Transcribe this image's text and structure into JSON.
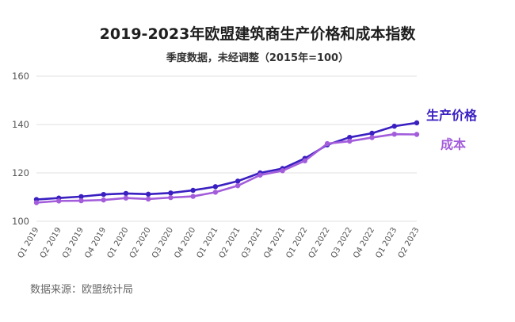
{
  "chart_data": {
    "type": "line",
    "title": "2019-2023年欧盟建筑商生产价格和成本指数",
    "subtitle": "季度数据，未经调整（2015年=100）",
    "source": "数据来源：欧盟统计局",
    "ylim": [
      100,
      160
    ],
    "yticks": [
      "100",
      "120",
      "140",
      "160"
    ],
    "grid": true,
    "categories": [
      "Q1 2019",
      "Q2 2019",
      "Q3 2019",
      "Q4 2019",
      "Q1 2020",
      "Q2 2020",
      "Q3 2020",
      "Q4 2020",
      "Q1 2021",
      "Q2 2021",
      "Q3 2021",
      "Q4 2021",
      "Q1 2022",
      "Q2 2022",
      "Q3 2022",
      "Q4 2022",
      "Q1 2023",
      "Q2 2023"
    ],
    "series": [
      {
        "name": "生产价格",
        "color": "#3a1fc1",
        "values": [
          109.0,
          109.6,
          110.2,
          111.1,
          111.5,
          111.2,
          111.7,
          112.8,
          114.3,
          116.6,
          120.0,
          121.8,
          126.0,
          131.6,
          134.7,
          136.4,
          139.3,
          140.7
        ]
      },
      {
        "name": "成本",
        "color": "#a35ddb",
        "values": [
          107.7,
          108.4,
          108.5,
          108.8,
          109.6,
          109.2,
          109.8,
          110.3,
          112.0,
          114.7,
          119.1,
          120.9,
          125.0,
          132.1,
          133.1,
          134.6,
          136.0,
          135.9
        ]
      }
    ]
  }
}
